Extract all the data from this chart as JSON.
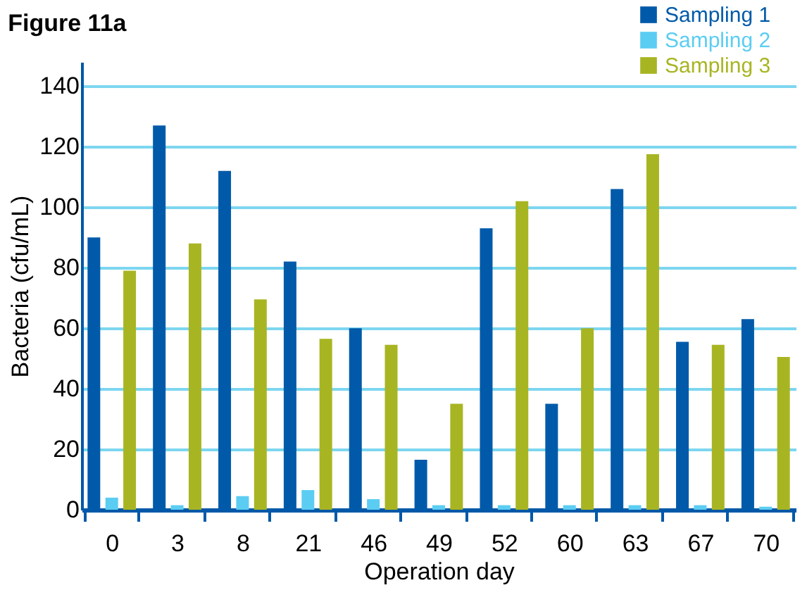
{
  "chart_data": {
    "type": "bar",
    "title": "Figure 11a",
    "xlabel": "Operation day",
    "ylabel": "Bacteria (cfu/mL)",
    "categories": [
      "0",
      "3",
      "8",
      "21",
      "46",
      "49",
      "52",
      "60",
      "63",
      "67",
      "70"
    ],
    "series": [
      {
        "name": "Sampling 1",
        "color": "#005aa9",
        "values": [
          90,
          127,
          112,
          82,
          60,
          16.5,
          93,
          35,
          106,
          55.5,
          63
        ]
      },
      {
        "name": "Sampling 2",
        "color": "#5ccdf2",
        "values": [
          4,
          1.5,
          4.5,
          6.5,
          3.5,
          1.5,
          1.5,
          1.5,
          1.5,
          1.5,
          1
        ]
      },
      {
        "name": "Sampling 3",
        "color": "#a8b522",
        "values": [
          79,
          88,
          69.5,
          56.5,
          54.5,
          35,
          102,
          60,
          117.5,
          54.5,
          50.5
        ]
      }
    ],
    "ylim": [
      0,
      148
    ],
    "yticks": [
      0,
      20,
      40,
      60,
      80,
      100,
      120,
      140
    ],
    "grid": "y",
    "legend": "top right"
  }
}
